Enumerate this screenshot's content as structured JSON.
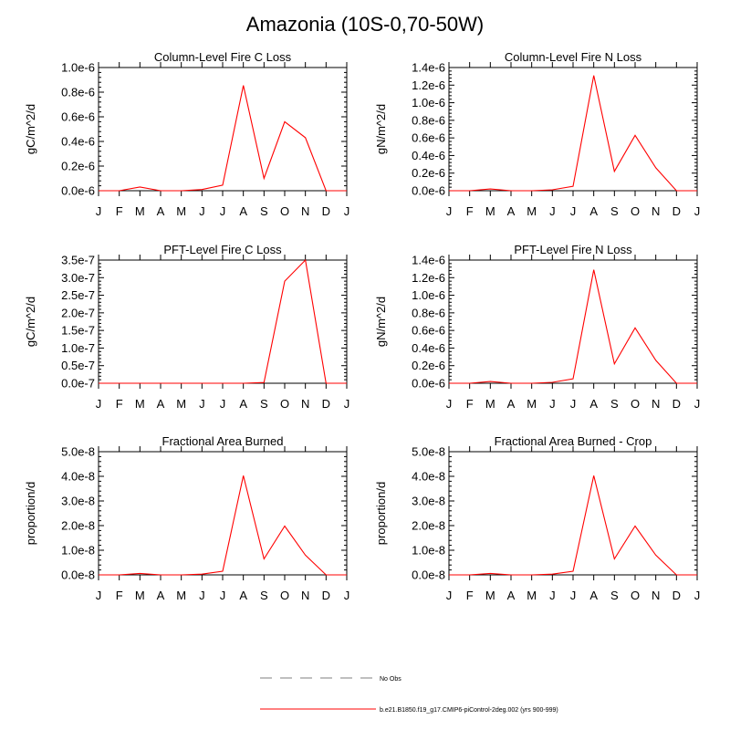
{
  "title": "Amazonia (10S-0,70-50W)",
  "months": [
    "J",
    "F",
    "M",
    "A",
    "M",
    "J",
    "J",
    "A",
    "S",
    "O",
    "N",
    "D",
    "J"
  ],
  "colors": {
    "series": "#ff0000",
    "obs": "#999999",
    "axis": "#000000"
  },
  "legend": {
    "obs_label": "No Obs",
    "model_label": "b.e21.B1850.f19_g17.CMIP6-piControl-2deg.002 (yrs 900-999)"
  },
  "chart_data": [
    {
      "type": "line",
      "title": "Column-Level Fire C Loss",
      "ylabel": "gC/m^2/d",
      "ylim": [
        0,
        1e-06
      ],
      "yticks": [
        0,
        2e-07,
        4e-07,
        6e-07,
        8e-07,
        1e-06
      ],
      "ytick_labels": [
        "0.0e-6",
        "0.2e-6",
        "0.4e-6",
        "0.6e-6",
        "0.8e-6",
        "1.0e-6"
      ],
      "series": [
        {
          "name": "b.e21.B1850.f19_g17.CMIP6-piControl-2deg.002 (yrs 900-999)",
          "values": [
            0,
            0,
            3e-08,
            0,
            0,
            1e-08,
            4.5e-08,
            8.55e-07,
            1e-07,
            5.6e-07,
            4.3e-07,
            0,
            0
          ]
        }
      ]
    },
    {
      "type": "line",
      "title": "Column-Level Fire N Loss",
      "ylabel": "gN/m^2/d",
      "ylim": [
        0,
        1.4e-06
      ],
      "yticks": [
        0,
        2e-07,
        4e-07,
        6e-07,
        8e-07,
        1e-06,
        1.2e-06,
        1.4e-06
      ],
      "ytick_labels": [
        "0.0e-6",
        "0.2e-6",
        "0.4e-6",
        "0.6e-6",
        "0.8e-6",
        "1.0e-6",
        "1.2e-6",
        "1.4e-6"
      ],
      "series": [
        {
          "name": "b.e21.B1850.f19_g17.CMIP6-piControl-2deg.002 (yrs 900-999)",
          "values": [
            0,
            0,
            2e-08,
            0,
            0,
            1e-08,
            5e-08,
            1.31e-06,
            2.2e-07,
            6.3e-07,
            2.6e-07,
            0,
            0
          ]
        }
      ]
    },
    {
      "type": "line",
      "title": "PFT-Level Fire C Loss",
      "ylabel": "gC/m^2/d",
      "ylim": [
        0,
        3.5e-07
      ],
      "yticks": [
        0,
        5e-08,
        1e-07,
        1.5e-07,
        2e-07,
        2.5e-07,
        3e-07,
        3.5e-07
      ],
      "ytick_labels": [
        "0.0e-7",
        "0.5e-7",
        "1.0e-7",
        "1.5e-7",
        "2.0e-7",
        "2.5e-7",
        "3.0e-7",
        "3.5e-7"
      ],
      "series": [
        {
          "name": "b.e21.B1850.f19_g17.CMIP6-piControl-2deg.002 (yrs 900-999)",
          "values": [
            0,
            0,
            0,
            0,
            0,
            0,
            0,
            0,
            2e-09,
            2.9e-07,
            3.5e-07,
            0,
            0
          ]
        }
      ]
    },
    {
      "type": "line",
      "title": "PFT-Level Fire N Loss",
      "ylabel": "gN/m^2/d",
      "ylim": [
        0,
        1.4e-06
      ],
      "yticks": [
        0,
        2e-07,
        4e-07,
        6e-07,
        8e-07,
        1e-06,
        1.2e-06,
        1.4e-06
      ],
      "ytick_labels": [
        "0.0e-6",
        "0.2e-6",
        "0.4e-6",
        "0.6e-6",
        "0.8e-6",
        "1.0e-6",
        "1.2e-6",
        "1.4e-6"
      ],
      "series": [
        {
          "name": "b.e21.B1850.f19_g17.CMIP6-piControl-2deg.002 (yrs 900-999)",
          "values": [
            0,
            0,
            2e-08,
            0,
            0,
            1e-08,
            5e-08,
            1.29e-06,
            2.2e-07,
            6.3e-07,
            2.6e-07,
            0,
            0
          ]
        }
      ]
    },
    {
      "type": "line",
      "title": "Fractional Area Burned",
      "ylabel": "proportion/d",
      "ylim": [
        0,
        5e-08
      ],
      "yticks": [
        0,
        1e-08,
        2e-08,
        3e-08,
        4e-08,
        5e-08
      ],
      "ytick_labels": [
        "0.0e-8",
        "1.0e-8",
        "2.0e-8",
        "3.0e-8",
        "4.0e-8",
        "5.0e-8"
      ],
      "series": [
        {
          "name": "b.e21.B1850.f19_g17.CMIP6-piControl-2deg.002 (yrs 900-999)",
          "values": [
            0,
            0,
            6e-10,
            0,
            0,
            3e-10,
            1.5e-09,
            4.03e-08,
            6.5e-09,
            1.98e-08,
            8e-09,
            0,
            0
          ]
        }
      ]
    },
    {
      "type": "line",
      "title": "Fractional Area Burned - Crop",
      "ylabel": "proportion/d",
      "ylim": [
        0,
        5e-08
      ],
      "yticks": [
        0,
        1e-08,
        2e-08,
        3e-08,
        4e-08,
        5e-08
      ],
      "ytick_labels": [
        "0.0e-8",
        "1.0e-8",
        "2.0e-8",
        "3.0e-8",
        "4.0e-8",
        "5.0e-8"
      ],
      "series": [
        {
          "name": "b.e21.B1850.f19_g17.CMIP6-piControl-2deg.002 (yrs 900-999)",
          "values": [
            0,
            0,
            6e-10,
            0,
            0,
            3e-10,
            1.5e-09,
            4.03e-08,
            6.5e-09,
            1.98e-08,
            8e-09,
            0,
            0
          ]
        }
      ]
    }
  ]
}
